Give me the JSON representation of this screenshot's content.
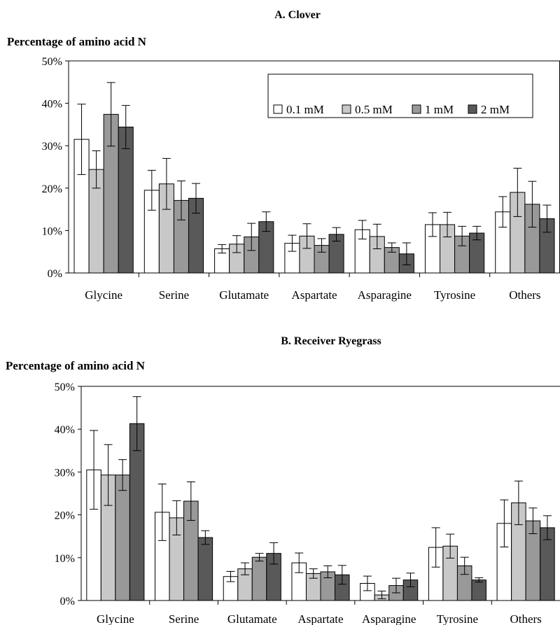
{
  "colors": {
    "0.1 mM": "#ffffff",
    "0.5 mM": "#c8c8c8",
    "1 mM": "#999999",
    "2 mM": "#595959"
  },
  "chart_data": [
    {
      "type": "bar",
      "title": "A. Clover",
      "ylabel": "Percentage of amino acid N",
      "ylim": [
        0,
        50
      ],
      "yticks": [
        "0%",
        "10%",
        "20%",
        "30%",
        "40%",
        "50%"
      ],
      "legend": "top-right",
      "categories": [
        "Glycine",
        "Serine",
        "Glutamate",
        "Aspartate",
        "Asparagine",
        "Tyrosine",
        "Others"
      ],
      "series": [
        {
          "name": "0.1 mM",
          "values": [
            31.5,
            19.5,
            5.7,
            7.0,
            10.2,
            11.4,
            14.4
          ],
          "errors": [
            8.3,
            4.7,
            1.0,
            1.9,
            2.2,
            2.8,
            3.6
          ]
        },
        {
          "name": "0.5 mM",
          "values": [
            24.4,
            21.0,
            6.8,
            8.7,
            8.6,
            11.4,
            19.0
          ],
          "errors": [
            4.4,
            6.0,
            2.0,
            2.9,
            2.9,
            2.9,
            5.7
          ]
        },
        {
          "name": "1 mM",
          "values": [
            37.4,
            17.1,
            8.5,
            6.5,
            6.0,
            8.7,
            16.2
          ],
          "errors": [
            7.5,
            4.6,
            3.2,
            1.6,
            1.1,
            2.3,
            5.4
          ]
        },
        {
          "name": "2 mM",
          "values": [
            34.4,
            17.6,
            12.1,
            9.1,
            4.5,
            9.4,
            12.8
          ],
          "errors": [
            5.1,
            3.5,
            2.3,
            1.6,
            2.6,
            1.6,
            3.2
          ]
        }
      ]
    },
    {
      "type": "bar",
      "title": "B. Receiver Ryegrass",
      "ylabel": "Percentage of amino acid N",
      "ylim": [
        0,
        50
      ],
      "yticks": [
        "0%",
        "10%",
        "20%",
        "30%",
        "40%",
        "50%"
      ],
      "categories": [
        "Glycine",
        "Serine",
        "Glutamate",
        "Aspartate",
        "Asparagine",
        "Tyrosine",
        "Others"
      ],
      "series": [
        {
          "name": "0.1 mM",
          "values": [
            30.5,
            20.6,
            5.6,
            8.8,
            4.0,
            12.4,
            18.0
          ],
          "errors": [
            9.2,
            6.6,
            1.2,
            2.3,
            1.7,
            4.6,
            5.5
          ]
        },
        {
          "name": "0.5 mM",
          "values": [
            29.3,
            19.3,
            7.4,
            6.3,
            1.3,
            12.7,
            22.8
          ],
          "errors": [
            7.1,
            4.0,
            1.4,
            1.1,
            0.9,
            2.8,
            5.1
          ]
        },
        {
          "name": "1 mM",
          "values": [
            29.3,
            23.2,
            10.1,
            6.7,
            3.5,
            8.1,
            18.6
          ],
          "errors": [
            3.6,
            4.5,
            0.9,
            1.4,
            1.7,
            2.0,
            3.0
          ]
        },
        {
          "name": "2 mM",
          "values": [
            41.3,
            14.7,
            11.0,
            6.0,
            4.8,
            4.8,
            17.0
          ],
          "errors": [
            6.3,
            1.6,
            2.5,
            2.2,
            1.6,
            0.5,
            2.8
          ]
        }
      ]
    }
  ]
}
